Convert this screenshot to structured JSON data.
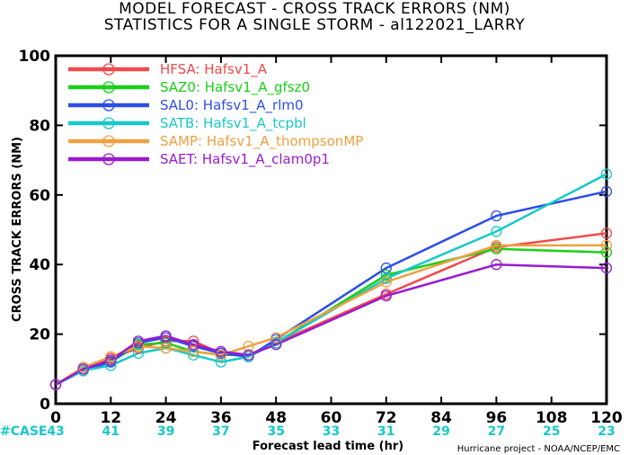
{
  "chart_data": {
    "type": "line",
    "title": "MODEL FORECAST - CROSS TRACK ERRORS (NM)",
    "subtitle": "STATISTICS FOR A SINGLE STORM - al122021_LARRY",
    "xlabel": "Forecast lead time (hr)",
    "ylabel": "CROSS TRACK ERRORS (NM)",
    "xlim": [
      0,
      120
    ],
    "ylim": [
      0,
      100
    ],
    "x_ticks": [
      0,
      12,
      24,
      36,
      48,
      60,
      72,
      84,
      96,
      108,
      120
    ],
    "y_ticks": [
      0,
      20,
      40,
      60,
      80,
      100
    ],
    "case_label": "#CASE",
    "case_counts": [
      43,
      41,
      39,
      37,
      35,
      33,
      31,
      29,
      27,
      25,
      23
    ],
    "credit": "Hurricane project - NOAA/NCEP/EMC",
    "legend_position": "top-left",
    "series": [
      {
        "name": "HFSA:  Hafsv1_A",
        "color": "#f04a4a",
        "x": [
          0,
          6,
          12,
          18,
          24,
          30,
          36,
          42,
          48,
          72,
          96,
          120
        ],
        "y": [
          5.5,
          10,
          13,
          16,
          18,
          18,
          14.5,
          14,
          17.5,
          31.5,
          45,
          49
        ]
      },
      {
        "name": "SAZ0:  Hafsv1_A_gfsz0",
        "color": "#18d018",
        "x": [
          0,
          6,
          12,
          18,
          24,
          30,
          36,
          42,
          48,
          72,
          96,
          120
        ],
        "y": [
          5.5,
          10,
          12,
          17,
          17.5,
          15,
          14,
          14,
          17.5,
          37,
          44.5,
          43.5
        ]
      },
      {
        "name": "SAL0:  Hafsv1_A_rlm0",
        "color": "#2c4ee6",
        "x": [
          0,
          6,
          12,
          18,
          24,
          30,
          36,
          42,
          48,
          72,
          96,
          120
        ],
        "y": [
          5.5,
          9.5,
          12,
          17.5,
          19,
          16.5,
          14.5,
          13.5,
          18.5,
          39,
          54,
          61
        ]
      },
      {
        "name": "SATB:  Hafsv1_A_tcpbl",
        "color": "#18c8c8",
        "x": [
          0,
          6,
          12,
          18,
          24,
          30,
          36,
          42,
          48,
          72,
          96,
          120
        ],
        "y": [
          5.5,
          9.5,
          11,
          14.5,
          16,
          14,
          12,
          13.5,
          17.5,
          36,
          49.5,
          66
        ]
      },
      {
        "name": "SAMP:  Hafsv1_A_thompsonMP",
        "color": "#f0a040",
        "x": [
          0,
          6,
          12,
          18,
          24,
          30,
          36,
          42,
          48,
          72,
          96,
          120
        ],
        "y": [
          5.5,
          10.5,
          13.5,
          16.5,
          16,
          15,
          14,
          16.5,
          19,
          35,
          45.5,
          45.5
        ]
      },
      {
        "name": "SAET:  Hafsv1_A_clam0p1",
        "color": "#9a1ad0",
        "x": [
          0,
          6,
          12,
          18,
          24,
          30,
          36,
          42,
          48,
          72,
          96,
          120
        ],
        "y": [
          5.5,
          10,
          12.5,
          18,
          19.5,
          17,
          15,
          14,
          17,
          31,
          40,
          39
        ]
      }
    ]
  }
}
